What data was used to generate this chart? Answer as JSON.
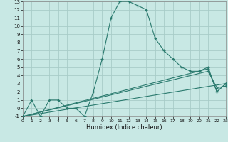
{
  "xlabel": "Humidex (Indice chaleur)",
  "bg_color": "#c8e8e4",
  "grid_color": "#a8ccc8",
  "line_color": "#2a7a6e",
  "xlim": [
    0,
    23
  ],
  "ylim": [
    -1,
    13
  ],
  "xticks": [
    0,
    1,
    2,
    3,
    4,
    5,
    6,
    7,
    8,
    9,
    10,
    11,
    12,
    13,
    14,
    15,
    16,
    17,
    18,
    19,
    20,
    21,
    22,
    23
  ],
  "yticks": [
    -1,
    0,
    1,
    2,
    3,
    4,
    5,
    6,
    7,
    8,
    9,
    10,
    11,
    12,
    13
  ],
  "series_main": [
    [
      0,
      -1
    ],
    [
      1,
      1
    ],
    [
      2,
      -1
    ],
    [
      3,
      1
    ],
    [
      4,
      1
    ],
    [
      5,
      0
    ],
    [
      6,
      0
    ],
    [
      7,
      -1
    ],
    [
      8,
      2
    ],
    [
      9,
      6
    ],
    [
      10,
      11
    ],
    [
      11,
      13
    ],
    [
      12,
      13
    ],
    [
      13,
      12.5
    ],
    [
      14,
      12
    ],
    [
      15,
      8.5
    ],
    [
      16,
      7
    ],
    [
      17,
      6
    ],
    [
      18,
      5
    ],
    [
      19,
      4.5
    ],
    [
      20,
      4.5
    ],
    [
      21,
      5
    ],
    [
      22,
      2
    ],
    [
      23,
      3
    ]
  ],
  "series2": [
    [
      0,
      -1
    ],
    [
      23,
      3
    ]
  ],
  "series3": [
    [
      0,
      -1
    ],
    [
      21,
      4.5
    ],
    [
      22,
      2.5
    ],
    [
      23,
      2.7
    ]
  ],
  "series4": [
    [
      0,
      -1
    ],
    [
      21,
      4.8
    ],
    [
      22,
      2
    ],
    [
      23,
      3
    ]
  ]
}
